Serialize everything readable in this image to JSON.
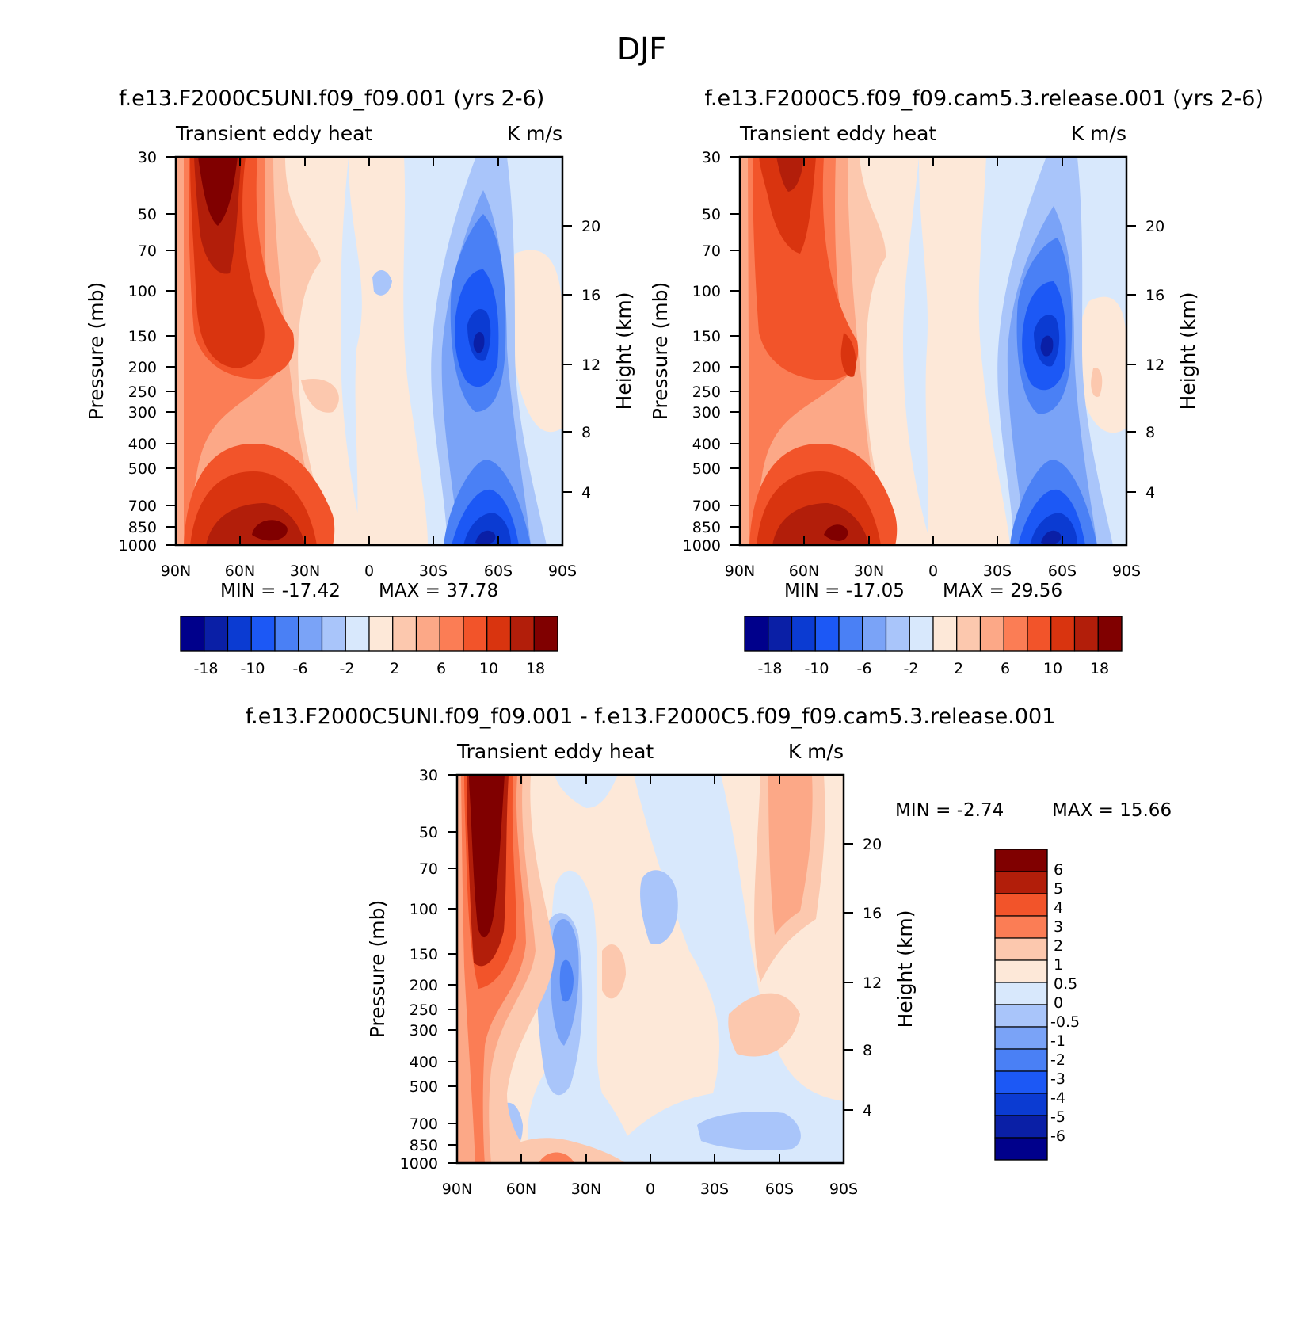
{
  "figure_title": "DJF",
  "colors": {
    "blue_red_16": [
      "#00008b",
      "#0a1fa6",
      "#0b3bd2",
      "#1c58f5",
      "#4a80f5",
      "#7aa3f7",
      "#a9c5fa",
      "#d8e8fc",
      "#fde8d8",
      "#fcc8ae",
      "#fca887",
      "#fb7d55",
      "#f2542a",
      "#d9340f",
      "#b21e0a",
      "#800000"
    ],
    "diff_13": [
      "#00008b",
      "#0a1fa6",
      "#0b3bd2",
      "#1c58f5",
      "#4a80f5",
      "#7aa3f7",
      "#a9c5fa",
      "#d8e8fc",
      "#fde8d8",
      "#fcc8ae",
      "#fb7d55",
      "#f2542a",
      "#b21e0a",
      "#800000"
    ]
  },
  "chart_data": [
    {
      "type": "contour",
      "panel": "top-left",
      "run_title": "f.e13.F2000C5UNI.f09_f09.001 (yrs 2-6)",
      "variable": "Transient eddy heat",
      "units": "K m/s",
      "ylabel": "Pressure (mb)",
      "y2label": "Height (km)",
      "x_ticks": [
        "90N",
        "60N",
        "30N",
        "0",
        "30S",
        "60S",
        "90S"
      ],
      "y_ticks": [
        "30",
        "50",
        "70",
        "100",
        "150",
        "200",
        "250",
        "300",
        "400",
        "500",
        "700",
        "850",
        "1000"
      ],
      "y2_ticks": [
        "20",
        "16",
        "12",
        "8",
        "4"
      ],
      "min_label": "MIN = -17.42",
      "max_label": "MAX = 37.78",
      "min": -17.42,
      "max": 37.78,
      "colorbar_labels": [
        "-18",
        "-10",
        "-6",
        "-2",
        "2",
        "6",
        "10",
        "18"
      ],
      "colorbar_levels": [
        -18,
        -14,
        -10,
        -8,
        -6,
        -4,
        -2,
        0,
        2,
        4,
        6,
        8,
        10,
        14,
        18
      ]
    },
    {
      "type": "contour",
      "panel": "top-right",
      "run_title": "f.e13.F2000C5.f09_f09.cam5.3.release.001 (yrs 2-6)",
      "variable": "Transient eddy heat",
      "units": "K m/s",
      "ylabel": "Pressure (mb)",
      "y2label": "Height (km)",
      "x_ticks": [
        "90N",
        "60N",
        "30N",
        "0",
        "30S",
        "60S",
        "90S"
      ],
      "y_ticks": [
        "30",
        "50",
        "70",
        "100",
        "150",
        "200",
        "250",
        "300",
        "400",
        "500",
        "700",
        "850",
        "1000"
      ],
      "y2_ticks": [
        "20",
        "16",
        "12",
        "8",
        "4"
      ],
      "min_label": "MIN = -17.05",
      "max_label": "MAX = 29.56",
      "min": -17.05,
      "max": 29.56,
      "colorbar_labels": [
        "-18",
        "-10",
        "-6",
        "-2",
        "2",
        "6",
        "10",
        "18"
      ],
      "colorbar_levels": [
        -18,
        -14,
        -10,
        -8,
        -6,
        -4,
        -2,
        0,
        2,
        4,
        6,
        8,
        10,
        14,
        18
      ]
    },
    {
      "type": "contour",
      "panel": "bottom-difference",
      "run_title": "f.e13.F2000C5UNI.f09_f09.001 - f.e13.F2000C5.f09_f09.cam5.3.release.001",
      "variable": "Transient eddy heat",
      "units": "K m/s",
      "ylabel": "Pressure (mb)",
      "y2label": "Height (km)",
      "x_ticks": [
        "90N",
        "60N",
        "30N",
        "0",
        "30S",
        "60S",
        "90S"
      ],
      "y_ticks": [
        "30",
        "50",
        "70",
        "100",
        "150",
        "200",
        "250",
        "300",
        "400",
        "500",
        "700",
        "850",
        "1000"
      ],
      "y2_ticks": [
        "20",
        "16",
        "12",
        "8",
        "4"
      ],
      "min_label": "MIN = -2.74",
      "max_label": "MAX = 15.66",
      "min": -2.74,
      "max": 15.66,
      "colorbar_labels": [
        "6",
        "5",
        "4",
        "3",
        "2",
        "1",
        "0.5",
        "0",
        "-0.5",
        "-1",
        "-2",
        "-3",
        "-4",
        "-5",
        "-6"
      ],
      "colorbar_levels": [
        6,
        5,
        4,
        3,
        2,
        1,
        0.5,
        0,
        -0.5,
        -1,
        -2,
        -3,
        -4,
        -5,
        -6
      ]
    }
  ]
}
